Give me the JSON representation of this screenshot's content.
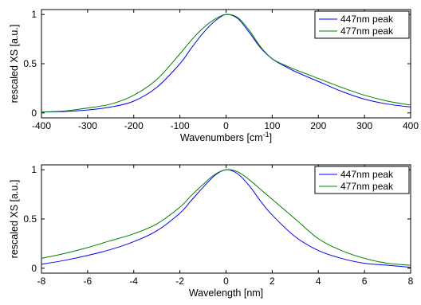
{
  "chart_data": [
    {
      "type": "line",
      "xlabel": "Wavenumbers [cm",
      "xlabel_sup": "-1",
      "xlabel_suffix": "]",
      "ylabel": "rescaled XS [a.u.]",
      "xlim": [
        -400,
        400
      ],
      "ylim": [
        -0.05,
        1.05
      ],
      "xticks": [
        -400,
        -300,
        -200,
        -100,
        0,
        100,
        200,
        300,
        400
      ],
      "yticks": [
        0,
        0.5,
        1
      ],
      "ytick_labels": [
        "0",
        "0.5",
        "1"
      ],
      "grid": false,
      "legend_position": "top-right",
      "series": [
        {
          "name": "447nm peak",
          "color": "#0000ff",
          "x": [
            -400,
            -350,
            -300,
            -250,
            -200,
            -150,
            -100,
            -75,
            -50,
            -25,
            0,
            25,
            50,
            75,
            100,
            125,
            150,
            200,
            250,
            300,
            350,
            400
          ],
          "y": [
            0.01,
            0.015,
            0.03,
            0.06,
            0.12,
            0.26,
            0.5,
            0.66,
            0.81,
            0.93,
            1.0,
            0.96,
            0.82,
            0.66,
            0.55,
            0.48,
            0.42,
            0.32,
            0.22,
            0.14,
            0.09,
            0.06
          ]
        },
        {
          "name": "477nm peak",
          "color": "#008000",
          "x": [
            -400,
            -350,
            -300,
            -250,
            -200,
            -150,
            -100,
            -75,
            -50,
            -25,
            0,
            25,
            50,
            75,
            100,
            125,
            150,
            200,
            250,
            300,
            350,
            400
          ],
          "y": [
            0.01,
            0.02,
            0.05,
            0.09,
            0.18,
            0.34,
            0.6,
            0.74,
            0.86,
            0.95,
            1.0,
            0.97,
            0.84,
            0.67,
            0.55,
            0.49,
            0.44,
            0.35,
            0.26,
            0.18,
            0.12,
            0.08
          ]
        }
      ]
    },
    {
      "type": "line",
      "xlabel": "Wavelength [nm]",
      "ylabel": "rescaled XS [a.u.]",
      "xlim": [
        -8,
        8
      ],
      "ylim": [
        -0.05,
        1.05
      ],
      "xticks": [
        -8,
        -6,
        -4,
        -2,
        0,
        2,
        4,
        6,
        8
      ],
      "yticks": [
        0,
        0.5,
        1
      ],
      "ytick_labels": [
        "0",
        "0.5",
        "1"
      ],
      "grid": false,
      "legend_position": "top-right",
      "series": [
        {
          "name": "447nm peak",
          "color": "#0000ff",
          "x": [
            -8,
            -7,
            -6,
            -5,
            -4,
            -3,
            -2,
            -1.5,
            -1,
            -0.5,
            0,
            0.5,
            1,
            1.5,
            2,
            3,
            4,
            5,
            6,
            7,
            8
          ],
          "y": [
            0.04,
            0.08,
            0.13,
            0.19,
            0.27,
            0.38,
            0.56,
            0.69,
            0.82,
            0.94,
            1.0,
            0.96,
            0.84,
            0.68,
            0.54,
            0.32,
            0.18,
            0.1,
            0.05,
            0.03,
            0.01
          ]
        },
        {
          "name": "477nm peak",
          "color": "#008000",
          "x": [
            -8,
            -7,
            -6,
            -5,
            -4,
            -3,
            -2,
            -1.5,
            -1,
            -0.5,
            0,
            0.5,
            1,
            1.5,
            2,
            3,
            4,
            5,
            6,
            7,
            8
          ],
          "y": [
            0.1,
            0.15,
            0.21,
            0.28,
            0.35,
            0.45,
            0.62,
            0.74,
            0.85,
            0.95,
            1.0,
            0.98,
            0.9,
            0.8,
            0.7,
            0.5,
            0.3,
            0.18,
            0.1,
            0.05,
            0.03
          ]
        }
      ]
    }
  ]
}
